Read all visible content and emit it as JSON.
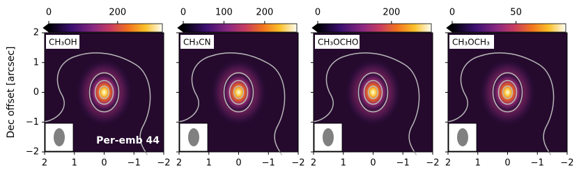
{
  "chart_data": [
    {
      "type": "image",
      "title": "CH₃OH",
      "ylabel": "Dec offset [arcsec]",
      "annotation": "Per-emb 44",
      "xlim": [
        2,
        -2
      ],
      "ylim": [
        -2,
        2
      ],
      "xticks": [
        2,
        1,
        0,
        {
          "value": -1,
          "label": "−1"
        },
        {
          "value": -2,
          "label": "−2"
        }
      ],
      "yticks": [
        {
          "value": -2,
          "label": "−2"
        },
        {
          "value": -1,
          "label": "−1"
        },
        0,
        1,
        2
      ],
      "clim": [
        0,
        330
      ],
      "cticks": [
        0,
        200
      ]
    },
    {
      "type": "image",
      "title": "CH₃CN",
      "xlim": [
        2,
        -2
      ],
      "ylim": [
        -2,
        2
      ],
      "xticks": [
        2,
        1,
        0,
        {
          "value": -1,
          "label": "−1"
        },
        {
          "value": -2,
          "label": "−2"
        }
      ],
      "clim": [
        0,
        279
      ],
      "cticks": [
        0,
        100,
        200
      ]
    },
    {
      "type": "image",
      "title": "CH₃OCHO",
      "xlim": [
        2,
        -2
      ],
      "ylim": [
        -2,
        2
      ],
      "xticks": [
        2,
        1,
        0,
        {
          "value": -1,
          "label": "−1"
        },
        {
          "value": -2,
          "label": "−2"
        }
      ],
      "clim": [
        0,
        308
      ],
      "cticks": [
        0,
        200
      ]
    },
    {
      "type": "image",
      "title": "CH₃OCH₃",
      "xlim": [
        2,
        -2
      ],
      "ylim": [
        -2,
        2
      ],
      "xticks": [
        2,
        1,
        0,
        {
          "value": -1,
          "label": "−1"
        },
        {
          "value": -2,
          "label": "−2"
        }
      ],
      "clim": [
        0,
        89
      ],
      "cticks": [
        0,
        50
      ]
    }
  ]
}
